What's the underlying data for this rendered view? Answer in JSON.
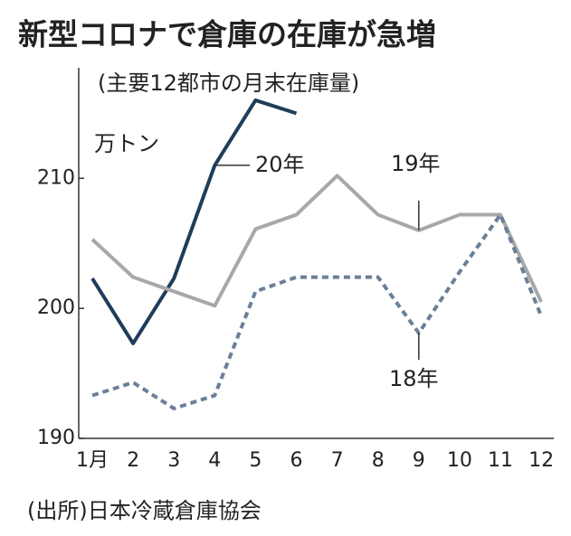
{
  "chart_data": {
    "type": "line",
    "title": "新型コロナで倉庫の在庫が急増",
    "subtitle": "(主要12都市の月末在庫量)",
    "unit_label": "万トン",
    "source": "(出所)日本冷蔵倉庫協会",
    "categories": [
      "1月",
      "2",
      "3",
      "4",
      "5",
      "6",
      "7",
      "8",
      "9",
      "10",
      "11",
      "12"
    ],
    "series": [
      {
        "name": "20年",
        "color": "#1f3d5a",
        "dashed": false,
        "values": [
          202.3,
          197.3,
          202.3,
          211,
          216,
          215,
          null,
          null,
          null,
          null,
          null,
          null
        ]
      },
      {
        "name": "19年",
        "color": "#a8a8a8",
        "dashed": false,
        "values": [
          205.3,
          202.4,
          201.3,
          200.2,
          206.1,
          207.2,
          210.2,
          207.2,
          206,
          207.2,
          207.2,
          200.5
        ]
      },
      {
        "name": "18年",
        "color": "#6b7f98",
        "dashed": true,
        "values": [
          193.3,
          194.3,
          192.3,
          193.3,
          201.3,
          202.4,
          202.4,
          202.4,
          198.1,
          202.8,
          207.2,
          199.4
        ]
      }
    ],
    "ylim": [
      190,
      218.5
    ],
    "yticks": [
      190,
      200,
      210
    ],
    "grid": false
  }
}
